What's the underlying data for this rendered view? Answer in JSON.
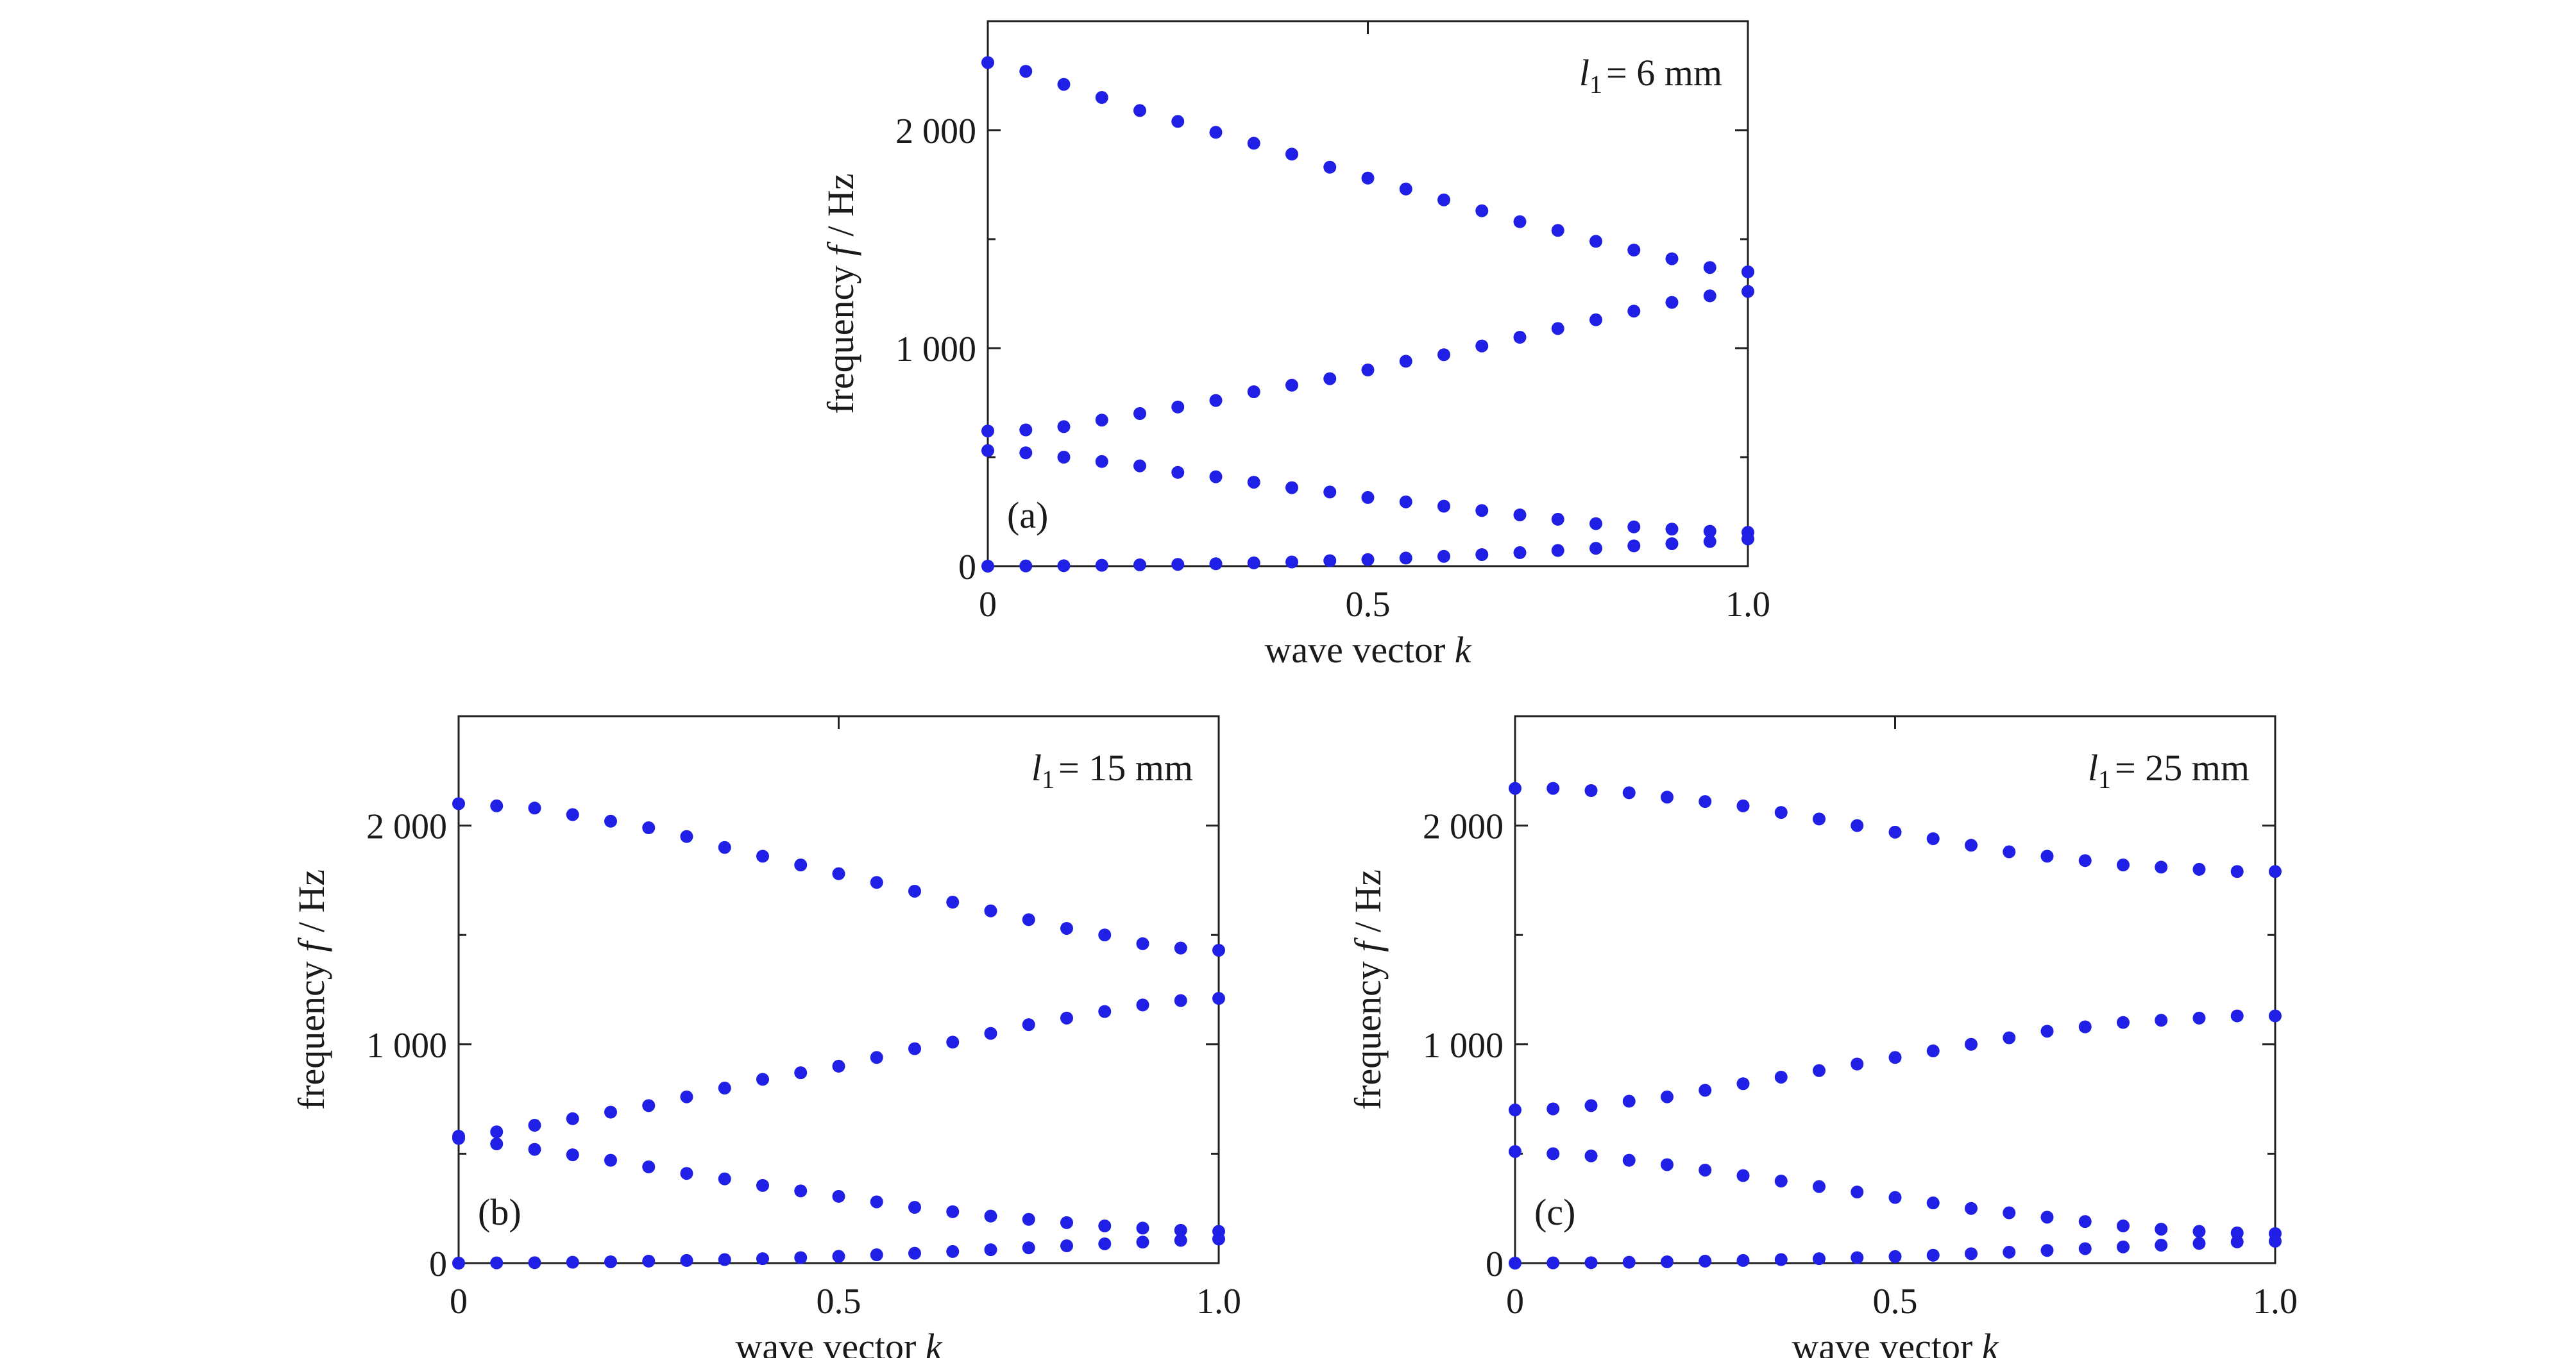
{
  "colors": {
    "points": "#1f1fe6",
    "axes": "#222222",
    "text": "#1a1a1a"
  },
  "chart_data": [
    {
      "type": "scatter",
      "panel": "(a)",
      "annotation": {
        "var": "l",
        "sub": "1",
        "rest": "= 6 mm"
      },
      "xlabel": {
        "text": "wave vector ",
        "var": "k"
      },
      "ylabel": {
        "text": "frequency ",
        "var": "f",
        "rest": " / Hz"
      },
      "xlim": [
        0,
        1
      ],
      "ylim": [
        0,
        2500
      ],
      "xticks": [
        {
          "v": 0,
          "label": "0"
        },
        {
          "v": 0.5,
          "label": "0.5"
        },
        {
          "v": 1,
          "label": "1.0"
        }
      ],
      "yticks": [
        {
          "v": 0,
          "label": "0"
        },
        {
          "v": 1000,
          "label": "1 000"
        },
        {
          "v": 2000,
          "label": "2 000"
        }
      ],
      "minor_yticks": [
        500,
        1500
      ],
      "x": [
        0,
        0.05,
        0.1,
        0.15,
        0.2,
        0.25,
        0.3,
        0.35,
        0.4,
        0.45,
        0.5,
        0.55,
        0.6,
        0.65,
        0.7,
        0.75,
        0.8,
        0.85,
        0.9,
        0.95,
        1.0
      ],
      "series": [
        {
          "values": [
            2310,
            2270,
            2210,
            2150,
            2090,
            2040,
            1990,
            1940,
            1890,
            1830,
            1780,
            1730,
            1680,
            1630,
            1580,
            1540,
            1490,
            1450,
            1410,
            1370,
            1350
          ]
        },
        {
          "values": [
            620,
            625,
            640,
            670,
            700,
            730,
            760,
            800,
            830,
            860,
            900,
            940,
            970,
            1010,
            1050,
            1090,
            1130,
            1170,
            1210,
            1240,
            1260
          ]
        },
        {
          "values": [
            530,
            520,
            500,
            480,
            460,
            430,
            410,
            385,
            360,
            340,
            315,
            295,
            275,
            255,
            235,
            215,
            195,
            180,
            170,
            160,
            155
          ]
        },
        {
          "values": [
            0,
            1,
            2,
            4,
            6,
            8,
            11,
            15,
            19,
            25,
            30,
            37,
            45,
            53,
            62,
            72,
            82,
            93,
            103,
            113,
            125
          ]
        }
      ]
    },
    {
      "type": "scatter",
      "panel": "(b)",
      "annotation": {
        "var": "l",
        "sub": "1",
        "rest": "= 15 mm"
      },
      "xlabel": {
        "text": "wave vector ",
        "var": "k"
      },
      "ylabel": {
        "text": "frequency ",
        "var": "f",
        "rest": " / Hz"
      },
      "xlim": [
        0,
        1
      ],
      "ylim": [
        0,
        2500
      ],
      "xticks": [
        {
          "v": 0,
          "label": "0"
        },
        {
          "v": 0.5,
          "label": "0.5"
        },
        {
          "v": 1,
          "label": "1.0"
        }
      ],
      "yticks": [
        {
          "v": 0,
          "label": "0"
        },
        {
          "v": 1000,
          "label": "1 000"
        },
        {
          "v": 2000,
          "label": "2 000"
        }
      ],
      "minor_yticks": [
        500,
        1500
      ],
      "x": [
        0,
        0.05,
        0.1,
        0.15,
        0.2,
        0.25,
        0.3,
        0.35,
        0.4,
        0.45,
        0.5,
        0.55,
        0.6,
        0.65,
        0.7,
        0.75,
        0.8,
        0.85,
        0.9,
        0.95,
        1.0
      ],
      "series": [
        {
          "values": [
            2100,
            2090,
            2080,
            2050,
            2020,
            1990,
            1950,
            1900,
            1860,
            1820,
            1780,
            1740,
            1700,
            1650,
            1610,
            1570,
            1530,
            1500,
            1460,
            1440,
            1430
          ]
        },
        {
          "values": [
            580,
            600,
            630,
            660,
            690,
            720,
            760,
            800,
            840,
            870,
            900,
            940,
            980,
            1010,
            1050,
            1090,
            1120,
            1150,
            1180,
            1200,
            1210
          ]
        },
        {
          "values": [
            570,
            545,
            520,
            495,
            470,
            440,
            410,
            385,
            355,
            330,
            305,
            280,
            255,
            235,
            215,
            200,
            185,
            170,
            160,
            150,
            145
          ]
        },
        {
          "values": [
            0,
            1,
            2,
            4,
            6,
            9,
            12,
            16,
            20,
            25,
            31,
            38,
            45,
            53,
            61,
            70,
            79,
            88,
            96,
            104,
            110
          ]
        }
      ]
    },
    {
      "type": "scatter",
      "panel": "(c)",
      "annotation": {
        "var": "l",
        "sub": "1",
        "rest": "= 25 mm"
      },
      "xlabel": {
        "text": "wave vector ",
        "var": "k"
      },
      "ylabel": {
        "text": "frequency ",
        "var": "f",
        "rest": " / Hz"
      },
      "xlim": [
        0,
        1
      ],
      "ylim": [
        0,
        2500
      ],
      "xticks": [
        {
          "v": 0,
          "label": "0"
        },
        {
          "v": 0.5,
          "label": "0.5"
        },
        {
          "v": 1,
          "label": "1.0"
        }
      ],
      "yticks": [
        {
          "v": 0,
          "label": "0"
        },
        {
          "v": 1000,
          "label": "1 000"
        },
        {
          "v": 2000,
          "label": "2 000"
        }
      ],
      "minor_yticks": [
        500,
        1500
      ],
      "x": [
        0,
        0.05,
        0.1,
        0.15,
        0.2,
        0.25,
        0.3,
        0.35,
        0.4,
        0.45,
        0.5,
        0.55,
        0.6,
        0.65,
        0.7,
        0.75,
        0.8,
        0.85,
        0.9,
        0.95,
        1.0
      ],
      "series": [
        {
          "values": [
            2170,
            2170,
            2160,
            2150,
            2130,
            2110,
            2090,
            2060,
            2030,
            2000,
            1970,
            1940,
            1910,
            1880,
            1860,
            1840,
            1820,
            1810,
            1800,
            1790,
            1790
          ]
        },
        {
          "values": [
            700,
            705,
            720,
            740,
            760,
            790,
            820,
            850,
            880,
            910,
            940,
            970,
            1000,
            1030,
            1060,
            1080,
            1100,
            1110,
            1120,
            1130,
            1130
          ]
        },
        {
          "values": [
            510,
            500,
            490,
            470,
            450,
            425,
            400,
            375,
            350,
            325,
            300,
            275,
            250,
            230,
            210,
            190,
            170,
            155,
            145,
            138,
            135
          ]
        },
        {
          "values": [
            0,
            1,
            2,
            4,
            6,
            9,
            12,
            16,
            20,
            25,
            30,
            36,
            43,
            50,
            58,
            66,
            74,
            82,
            90,
            97,
            100
          ]
        }
      ]
    }
  ]
}
